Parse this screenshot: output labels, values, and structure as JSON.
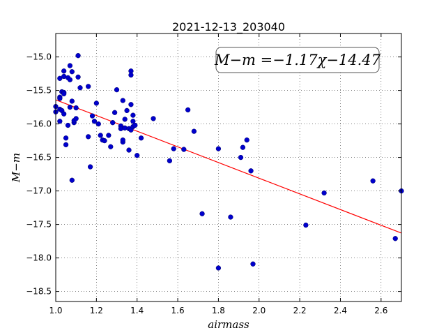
{
  "chart_data": {
    "type": "scatter",
    "title": "2021-12-13_203040",
    "xlabel": "airmass",
    "ylabel": "M−m",
    "xlim": [
      1.0,
      2.7
    ],
    "ylim": [
      -18.65,
      -14.65
    ],
    "y_inverted": true,
    "grid": true,
    "xticks": [
      1.0,
      1.2,
      1.4,
      1.6,
      1.8,
      2.0,
      2.2,
      2.4,
      2.6
    ],
    "xtick_labels": [
      "1.0",
      "1.2",
      "1.4",
      "1.6",
      "1.8",
      "2.0",
      "2.2",
      "2.4",
      "2.6"
    ],
    "yticks": [
      -15.0,
      -15.5,
      -16.0,
      -16.5,
      -17.0,
      -17.5,
      -18.0,
      -18.5
    ],
    "ytick_labels": [
      "−15.0",
      "−15.5",
      "−16.0",
      "−16.5",
      "−17.0",
      "−17.5",
      "−18.0",
      "−18.5"
    ],
    "annotation": "M−m =−1.17χ−14.47",
    "fit": {
      "slope": -1.17,
      "intercept": -14.47,
      "color": "#ff0000"
    },
    "point_color": "#0000cc",
    "points": [
      [
        1.0,
        -15.74
      ],
      [
        1.0,
        -15.82
      ],
      [
        1.02,
        -15.32
      ],
      [
        1.02,
        -15.6
      ],
      [
        1.02,
        -15.78
      ],
      [
        1.02,
        -15.96
      ],
      [
        1.02,
        -15.62
      ],
      [
        1.03,
        -15.52
      ],
      [
        1.03,
        -15.8
      ],
      [
        1.04,
        -15.29
      ],
      [
        1.04,
        -15.53
      ],
      [
        1.04,
        -15.55
      ],
      [
        1.04,
        -15.85
      ],
      [
        1.04,
        -15.21
      ],
      [
        1.05,
        -16.21
      ],
      [
        1.05,
        -16.31
      ],
      [
        1.06,
        -15.31
      ],
      [
        1.06,
        -16.02
      ],
      [
        1.07,
        -15.34
      ],
      [
        1.07,
        -15.75
      ],
      [
        1.07,
        -15.13
      ],
      [
        1.08,
        -15.22
      ],
      [
        1.08,
        -15.66
      ],
      [
        1.08,
        -16.84
      ],
      [
        1.09,
        -15.98
      ],
      [
        1.09,
        -15.95
      ],
      [
        1.1,
        -15.92
      ],
      [
        1.1,
        -15.76
      ],
      [
        1.11,
        -14.98
      ],
      [
        1.11,
        -15.3
      ],
      [
        1.12,
        -15.46
      ],
      [
        1.16,
        -15.44
      ],
      [
        1.16,
        -16.19
      ],
      [
        1.17,
        -16.64
      ],
      [
        1.18,
        -15.88
      ],
      [
        1.19,
        -15.96
      ],
      [
        1.2,
        -15.69
      ],
      [
        1.21,
        -16.0
      ],
      [
        1.22,
        -16.17
      ],
      [
        1.23,
        -16.24
      ],
      [
        1.24,
        -16.25
      ],
      [
        1.26,
        -16.17
      ],
      [
        1.27,
        -16.34
      ],
      [
        1.28,
        -15.98
      ],
      [
        1.29,
        -15.83
      ],
      [
        1.3,
        -15.49
      ],
      [
        1.32,
        -16.03
      ],
      [
        1.32,
        -16.07
      ],
      [
        1.33,
        -16.27
      ],
      [
        1.33,
        -16.24
      ],
      [
        1.33,
        -15.65
      ],
      [
        1.34,
        -15.93
      ],
      [
        1.34,
        -16.06
      ],
      [
        1.35,
        -15.8
      ],
      [
        1.36,
        -16.39
      ],
      [
        1.36,
        -16.07
      ],
      [
        1.37,
        -16.09
      ],
      [
        1.37,
        -15.71
      ],
      [
        1.37,
        -15.21
      ],
      [
        1.37,
        -15.27
      ],
      [
        1.38,
        -15.87
      ],
      [
        1.38,
        -15.96
      ],
      [
        1.38,
        -16.04
      ],
      [
        1.39,
        -16.02
      ],
      [
        1.4,
        -16.47
      ],
      [
        1.42,
        -16.21
      ],
      [
        1.48,
        -15.92
      ],
      [
        1.56,
        -16.55
      ],
      [
        1.58,
        -16.37
      ],
      [
        1.63,
        -16.38
      ],
      [
        1.65,
        -15.79
      ],
      [
        1.68,
        -16.11
      ],
      [
        1.72,
        -17.34
      ],
      [
        1.8,
        -16.37
      ],
      [
        1.8,
        -18.15
      ],
      [
        1.86,
        -17.39
      ],
      [
        1.91,
        -16.5
      ],
      [
        1.92,
        -16.35
      ],
      [
        1.94,
        -16.24
      ],
      [
        1.96,
        -16.7
      ],
      [
        1.97,
        -18.09
      ],
      [
        2.23,
        -17.51
      ],
      [
        2.32,
        -17.03
      ],
      [
        2.56,
        -16.85
      ],
      [
        2.67,
        -17.71
      ],
      [
        2.7,
        -17.0
      ]
    ]
  }
}
